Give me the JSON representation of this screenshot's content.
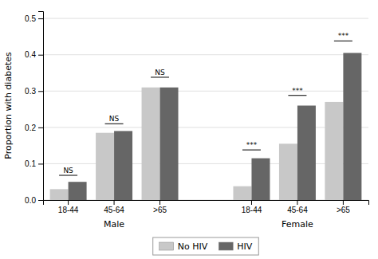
{
  "chart_data": {
    "type": "bar",
    "ylabel": "Proportion with diabetes",
    "categories": [
      "18-44",
      "45-64",
      ">65",
      "18-44",
      "45-64",
      ">65"
    ],
    "category_groups": [
      "Male",
      "Male",
      "Male",
      "Female",
      "Female",
      "Female"
    ],
    "series": [
      {
        "name": "No HIV",
        "color": "#c8c8c8",
        "values": [
          0.03,
          0.185,
          0.31,
          0.038,
          0.155,
          0.27
        ]
      },
      {
        "name": "HIV",
        "color": "#666666",
        "values": [
          0.05,
          0.19,
          0.31,
          0.115,
          0.26,
          0.405
        ]
      }
    ],
    "annotations": [
      {
        "text": "NS",
        "y": 0.068
      },
      {
        "text": "NS",
        "y": 0.21
      },
      {
        "text": "NS",
        "y": 0.338
      },
      {
        "text": "***",
        "y": 0.138
      },
      {
        "text": "***",
        "y": 0.288
      },
      {
        "text": "***",
        "y": 0.438
      }
    ],
    "ylim": [
      0,
      0.52
    ],
    "yticks": [
      {
        "value": 0.0,
        "label": "0.0"
      },
      0.1,
      0.2,
      0.3,
      0.4,
      0.5
    ],
    "grid": true,
    "legend": "bottom"
  }
}
